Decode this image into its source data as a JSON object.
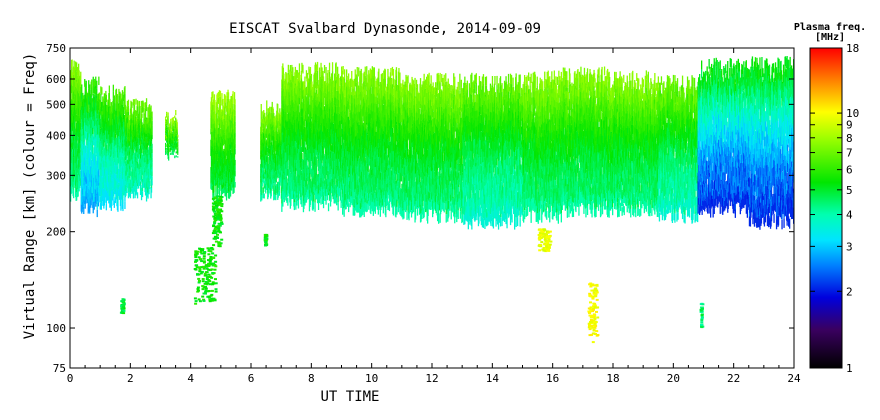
{
  "chart_data": {
    "type": "scatter",
    "title": "EISCAT Svalbard Dynasonde, 2014-09-09",
    "xlabel": "UT TIME",
    "ylabel": "Virtual Range [km] (colour = Freq)",
    "xlim": [
      0,
      24
    ],
    "ylim": [
      75,
      750
    ],
    "yscale": "log",
    "xticks": [
      0,
      2,
      4,
      6,
      8,
      10,
      12,
      14,
      16,
      18,
      20,
      22,
      24
    ],
    "yticks": [
      75,
      100,
      200,
      300,
      400,
      500,
      600,
      750
    ],
    "colorbar": {
      "label_line1": "Plasma freq.",
      "label_line2": "[MHz]",
      "scale": "log",
      "range": [
        1,
        18
      ],
      "ticks": [
        1,
        2,
        3,
        4,
        5,
        6,
        7,
        8,
        9,
        10,
        18
      ]
    },
    "series": [
      {
        "kind": "echo-bands",
        "bands": [
          {
            "t0": 0.0,
            "t1": 0.35,
            "base_km": 270,
            "top_km": 690,
            "fmin_mhz": 4.5
          },
          {
            "t0": 0.35,
            "t1": 0.95,
            "base_km": 240,
            "top_km": 600,
            "fmin_mhz": 3.0
          },
          {
            "t0": 0.95,
            "t1": 1.8,
            "base_km": 250,
            "top_km": 560,
            "fmin_mhz": 3.5
          },
          {
            "t0": 1.8,
            "t1": 2.7,
            "base_km": 270,
            "top_km": 510,
            "fmin_mhz": 4.0
          },
          {
            "t0": 3.15,
            "t1": 3.55,
            "base_km": 360,
            "top_km": 470,
            "fmin_mhz": 5.0
          },
          {
            "t0": 4.65,
            "t1": 5.45,
            "base_km": 270,
            "top_km": 540,
            "fmin_mhz": 5.0
          },
          {
            "t0": 6.3,
            "t1": 7.0,
            "base_km": 270,
            "top_km": 500,
            "fmin_mhz": 4.5
          },
          {
            "t0": 7.0,
            "t1": 9.0,
            "base_km": 250,
            "top_km": 660,
            "fmin_mhz": 4.5
          },
          {
            "t0": 9.0,
            "t1": 11.0,
            "base_km": 240,
            "top_km": 640,
            "fmin_mhz": 4.5
          },
          {
            "t0": 11.0,
            "t1": 13.0,
            "base_km": 230,
            "top_km": 610,
            "fmin_mhz": 4.5
          },
          {
            "t0": 13.0,
            "t1": 15.0,
            "base_km": 220,
            "top_km": 610,
            "fmin_mhz": 4.0
          },
          {
            "t0": 15.0,
            "t1": 16.3,
            "base_km": 230,
            "top_km": 620,
            "fmin_mhz": 4.5
          },
          {
            "t0": 16.3,
            "t1": 17.8,
            "base_km": 240,
            "top_km": 640,
            "fmin_mhz": 4.5
          },
          {
            "t0": 17.8,
            "t1": 19.5,
            "base_km": 240,
            "top_km": 620,
            "fmin_mhz": 4.5
          },
          {
            "t0": 19.5,
            "t1": 20.8,
            "base_km": 230,
            "top_km": 600,
            "fmin_mhz": 4.0
          },
          {
            "t0": 20.8,
            "t1": 22.5,
            "base_km": 240,
            "top_km": 680,
            "fmin_mhz": 2.3
          },
          {
            "t0": 22.5,
            "t1": 24.0,
            "base_km": 220,
            "top_km": 690,
            "fmin_mhz": 2.3
          }
        ],
        "clusters": [
          {
            "t": 4.45,
            "km": 150,
            "spread_t": 0.35,
            "spread_km": 30,
            "f_mhz": 5.5
          },
          {
            "t": 4.85,
            "km": 220,
            "spread_t": 0.15,
            "spread_km": 40,
            "f_mhz": 5.5
          },
          {
            "t": 1.7,
            "km": 118,
            "spread_t": 0.05,
            "spread_km": 6,
            "f_mhz": 5.0
          },
          {
            "t": 6.45,
            "km": 190,
            "spread_t": 0.03,
            "spread_km": 8,
            "f_mhz": 5.5
          },
          {
            "t": 15.7,
            "km": 190,
            "spread_t": 0.2,
            "spread_km": 15,
            "f_mhz": 9.5
          },
          {
            "t": 17.3,
            "km": 115,
            "spread_t": 0.15,
            "spread_km": 25,
            "f_mhz": 10.0
          },
          {
            "t": 20.9,
            "km": 110,
            "spread_t": 0.03,
            "spread_km": 10,
            "f_mhz": 4.5
          }
        ]
      }
    ]
  }
}
